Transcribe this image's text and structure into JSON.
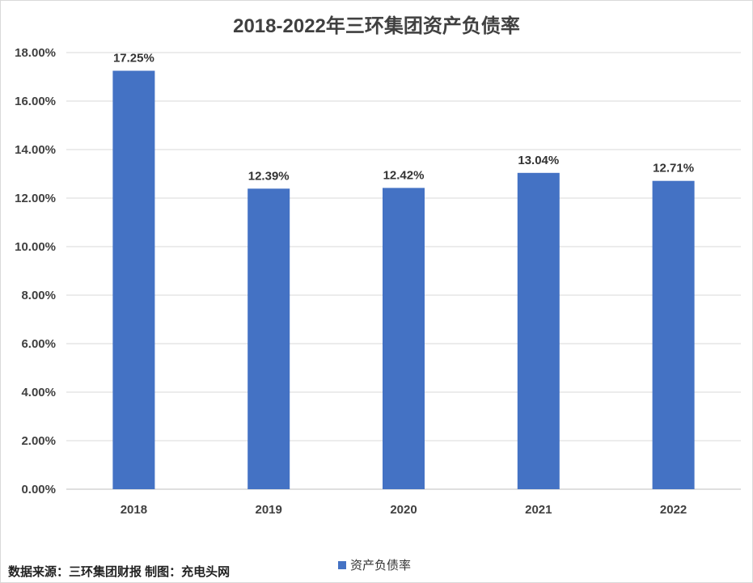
{
  "chart_data": {
    "type": "bar",
    "title": "2018-2022年三环集团资产负债率",
    "categories": [
      "2018",
      "2019",
      "2020",
      "2021",
      "2022"
    ],
    "series": [
      {
        "name": "资产负债率",
        "values": [
          17.25,
          12.39,
          12.42,
          13.04,
          12.71
        ],
        "color": "#4472c4"
      }
    ],
    "data_labels": [
      "17.25%",
      "12.39%",
      "12.42%",
      "13.04%",
      "12.71%"
    ],
    "ylim": [
      0,
      18
    ],
    "y_ticks": [
      "0.00%",
      "2.00%",
      "4.00%",
      "6.00%",
      "8.00%",
      "10.00%",
      "12.00%",
      "14.00%",
      "16.00%",
      "18.00%"
    ],
    "grid": true,
    "legend_position": "bottom"
  },
  "footer": {
    "source": "数据来源：三环集团财报 制图：充电头网"
  }
}
